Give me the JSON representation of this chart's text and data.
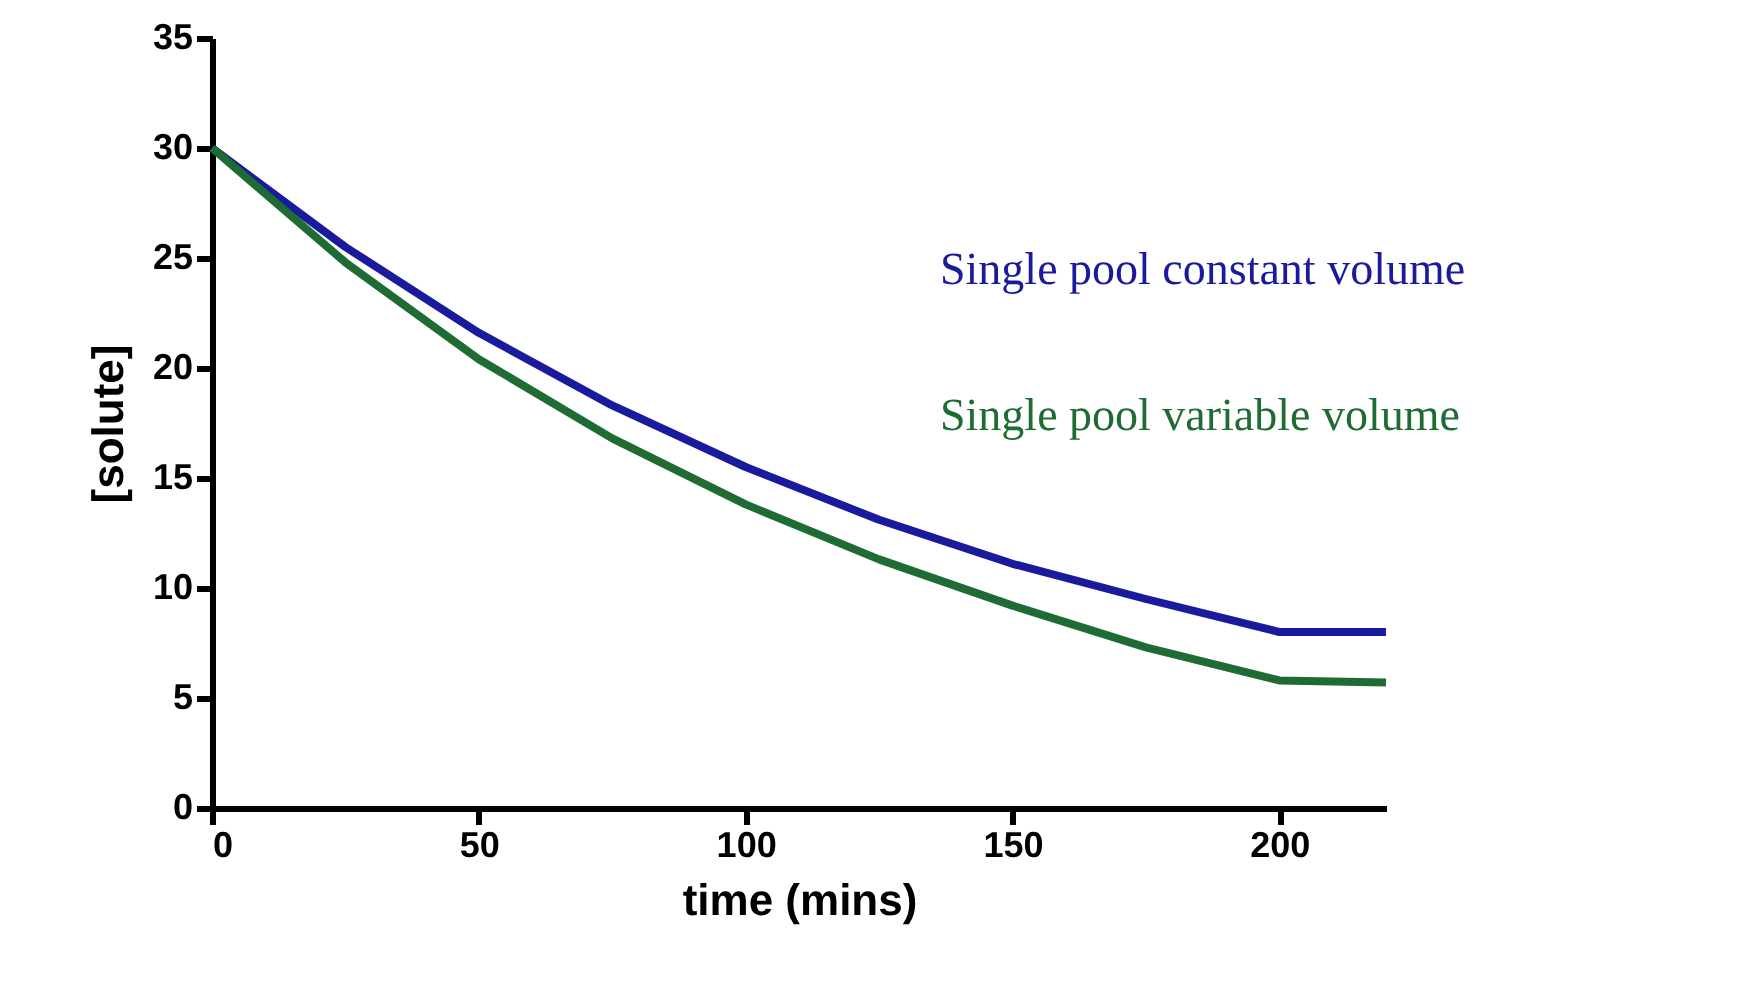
{
  "chart_data": {
    "type": "line",
    "xlabel": "time (mins)",
    "ylabel": "[solute]",
    "xlim": [
      0,
      220
    ],
    "xticks": [
      0,
      50,
      100,
      150,
      200
    ],
    "ylim": [
      0,
      35
    ],
    "yticks": [
      0,
      5,
      10,
      15,
      20,
      25,
      30,
      35
    ],
    "grid": false,
    "marker": "none",
    "line_style": "solid",
    "series": [
      {
        "name": "Single pool constant volume",
        "color": "#1a1a9c",
        "x": [
          0,
          25,
          50,
          75,
          100,
          125,
          150,
          175,
          200,
          220
        ],
        "values": [
          30,
          25.5,
          21.6,
          18.3,
          15.5,
          13.1,
          11.1,
          9.5,
          8.0,
          8.0
        ]
      },
      {
        "name": "Single pool variable volume",
        "color": "#1e6b33",
        "x": [
          0,
          25,
          50,
          75,
          100,
          125,
          150,
          175,
          200,
          220
        ],
        "values": [
          30,
          24.8,
          20.4,
          16.8,
          13.8,
          11.3,
          9.2,
          7.3,
          5.8,
          5.7
        ]
      }
    ]
  }
}
